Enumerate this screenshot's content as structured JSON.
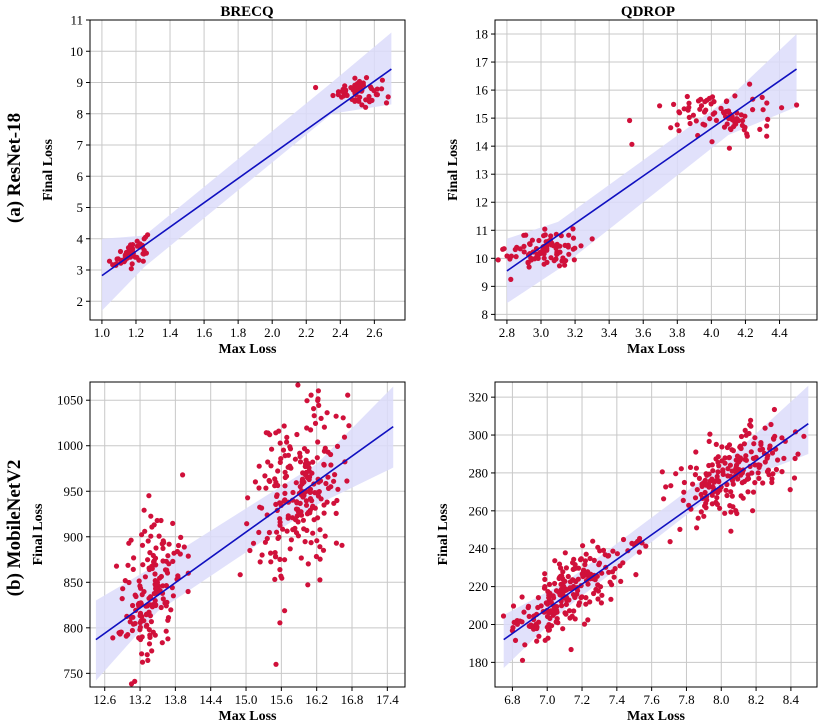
{
  "row_labels": [
    "(a) ResNet-18",
    "(b) MobileNetV2"
  ],
  "col_titles": [
    "BRECQ",
    "QDROP"
  ],
  "colors": {
    "points": "#d0103a",
    "line": "#1010c0",
    "band": "#dcdcfa",
    "grid": "#c8c8c8"
  },
  "chart_data": [
    {
      "type": "scatter",
      "title": "BRECQ",
      "row": "(a) ResNet-18",
      "xlabel": "Max Loss",
      "ylabel": "Final Loss",
      "xlim": [
        0.93,
        2.78
      ],
      "ylim": [
        1.4,
        11
      ],
      "xticks": [
        1.0,
        1.2,
        1.4,
        1.6,
        1.8,
        2.0,
        2.2,
        2.4,
        2.6
      ],
      "yticks": [
        2,
        3,
        4,
        5,
        6,
        7,
        8,
        9,
        10,
        11
      ],
      "xtick_labels": [
        "1.0",
        "1.2",
        "1.4",
        "1.6",
        "1.8",
        "2.0",
        "2.2",
        "2.4",
        "2.6"
      ],
      "ytick_labels": [
        "2",
        "3",
        "4",
        "5",
        "6",
        "7",
        "8",
        "9",
        "10",
        "11"
      ],
      "regression": {
        "x": [
          1.0,
          2.7
        ],
        "y": [
          2.82,
          9.43
        ]
      },
      "band": {
        "x": [
          1.0,
          1.25,
          2.35,
          2.7
        ],
        "upper": [
          4.0,
          4.1,
          9.0,
          10.6
        ],
        "lower": [
          1.7,
          3.1,
          8.0,
          8.3
        ]
      },
      "clusters": [
        {
          "n": 60,
          "cx": 1.17,
          "cy": 3.55,
          "sx": 0.05,
          "sy": 0.18,
          "slope": 3.0
        },
        {
          "n": 55,
          "cx": 2.5,
          "cy": 8.75,
          "sx": 0.07,
          "sy": 0.25,
          "slope": 0.0
        }
      ]
    },
    {
      "type": "scatter",
      "title": "QDROP",
      "row": "(a) ResNet-18",
      "xlabel": "Max Loss",
      "ylabel": "Final Loss",
      "xlim": [
        2.73,
        4.62
      ],
      "ylim": [
        7.8,
        18.5
      ],
      "xticks": [
        2.8,
        3.0,
        3.2,
        3.4,
        3.6,
        3.8,
        4.0,
        4.2,
        4.4
      ],
      "yticks": [
        8,
        9,
        10,
        11,
        12,
        13,
        14,
        15,
        16,
        17,
        18
      ],
      "xtick_labels": [
        "2.8",
        "3.0",
        "3.2",
        "3.4",
        "3.6",
        "3.8",
        "4.0",
        "4.2",
        "4.4"
      ],
      "ytick_labels": [
        "8",
        "9",
        "10",
        "11",
        "12",
        "13",
        "14",
        "15",
        "16",
        "17",
        "18"
      ],
      "regression": {
        "x": [
          2.8,
          4.5
        ],
        "y": [
          9.55,
          16.75
        ]
      },
      "band": {
        "x": [
          2.8,
          3.1,
          4.1,
          4.5
        ],
        "upper": [
          10.7,
          11.3,
          15.7,
          18.0
        ],
        "lower": [
          8.4,
          9.6,
          14.4,
          15.4
        ]
      },
      "clusters": [
        {
          "n": 90,
          "cx": 3.02,
          "cy": 10.3,
          "sx": 0.11,
          "sy": 0.35,
          "slope": 0.0
        },
        {
          "n": 85,
          "cx": 4.05,
          "cy": 15.1,
          "sx": 0.16,
          "sy": 0.45,
          "slope": 0.0
        }
      ]
    },
    {
      "type": "scatter",
      "title": "",
      "row": "(b) MobileNetV2",
      "xlabel": "Max Loss",
      "ylabel": "Final Loss",
      "xlim": [
        12.35,
        17.7
      ],
      "ylim": [
        735,
        1070
      ],
      "xticks": [
        12.6,
        13.2,
        13.8,
        14.4,
        15.0,
        15.6,
        16.2,
        16.8,
        17.4
      ],
      "yticks": [
        750,
        800,
        850,
        900,
        950,
        1000,
        1050
      ],
      "xtick_labels": [
        "12.6",
        "13.2",
        "13.8",
        "14.4",
        "15.0",
        "15.6",
        "16.2",
        "16.8",
        "17.4"
      ],
      "ytick_labels": [
        "750",
        "800",
        "850",
        "900",
        "950",
        "1000",
        "1050"
      ],
      "regression": {
        "x": [
          12.45,
          17.5
        ],
        "y": [
          787,
          1021
        ]
      },
      "band": {
        "x": [
          12.45,
          13.5,
          16.2,
          17.5
        ],
        "upper": [
          830,
          870,
          980,
          1065
        ],
        "lower": [
          742,
          818,
          935,
          976
        ]
      },
      "clusters": [
        {
          "n": 170,
          "cx": 13.4,
          "cy": 842,
          "sx": 0.28,
          "sy": 40,
          "slope": 45
        },
        {
          "n": 230,
          "cx": 15.9,
          "cy": 945,
          "sx": 0.38,
          "sy": 50,
          "slope": 50
        }
      ]
    },
    {
      "type": "scatter",
      "title": "",
      "row": "(b) MobileNetV2",
      "xlabel": "Max Loss",
      "ylabel": "Final Loss",
      "xlim": [
        6.7,
        8.55
      ],
      "ylim": [
        167,
        328
      ],
      "xticks": [
        6.8,
        7.0,
        7.2,
        7.4,
        7.6,
        7.8,
        8.0,
        8.2,
        8.4
      ],
      "yticks": [
        180,
        200,
        220,
        240,
        260,
        280,
        300,
        320
      ],
      "xtick_labels": [
        "6.8",
        "7.0",
        "7.2",
        "7.4",
        "7.6",
        "7.8",
        "8.0",
        "8.2",
        "8.4"
      ],
      "ytick_labels": [
        "180",
        "200",
        "220",
        "240",
        "260",
        "280",
        "300",
        "320"
      ],
      "regression": {
        "x": [
          6.75,
          8.5
        ],
        "y": [
          192,
          306
        ]
      },
      "band": {
        "x": [
          6.75,
          7.1,
          8.0,
          8.5
        ],
        "upper": [
          205,
          222,
          284,
          326
        ],
        "lower": [
          177,
          208,
          272,
          290
        ]
      },
      "clusters": [
        {
          "n": 230,
          "cx": 7.12,
          "cy": 216,
          "sx": 0.16,
          "sy": 9,
          "slope": 55
        },
        {
          "n": 200,
          "cx": 8.08,
          "cy": 280,
          "sx": 0.17,
          "sy": 11,
          "slope": 40
        }
      ]
    }
  ]
}
